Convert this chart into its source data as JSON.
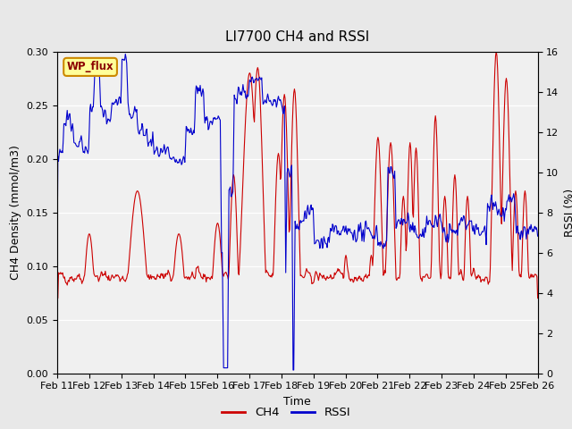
{
  "title": "LI7700 CH4 and RSSI",
  "xlabel": "Time",
  "ylabel_left": "CH4 Density (mmol/m3)",
  "ylabel_right": "RSSI (%)",
  "label_box": "WP_flux",
  "ylim_left": [
    0.0,
    0.3
  ],
  "ylim_right": [
    0,
    16
  ],
  "yticks_left": [
    0.0,
    0.05,
    0.1,
    0.15,
    0.2,
    0.25,
    0.3
  ],
  "yticks_right": [
    0,
    2,
    4,
    6,
    8,
    10,
    12,
    14,
    16
  ],
  "xtick_labels": [
    "Feb 11",
    "Feb 12",
    "Feb 13",
    "Feb 14",
    "Feb 15",
    "Feb 16",
    "Feb 17",
    "Feb 18",
    "Feb 19",
    "Feb 20",
    "Feb 21",
    "Feb 22",
    "Feb 23",
    "Feb 24",
    "Feb 25",
    "Feb 26"
  ],
  "bg_color": "#e8e8e8",
  "plot_bg_color": "#e8e8e8",
  "inner_bg_color": "#f0f0f0",
  "ch4_color": "#cc0000",
  "rssi_color": "#0000cc",
  "line_width": 0.8,
  "title_fontsize": 11,
  "label_fontsize": 9,
  "tick_fontsize": 8
}
